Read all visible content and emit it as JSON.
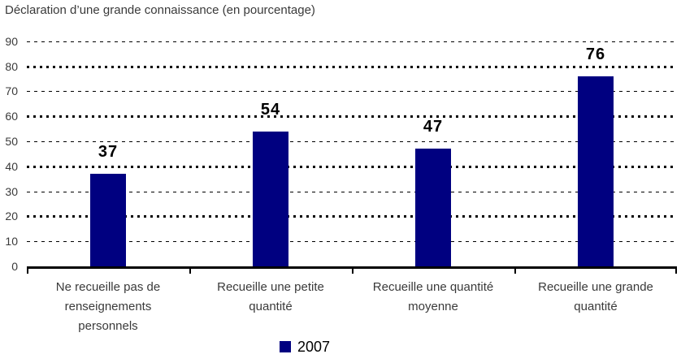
{
  "chart_data": {
    "type": "bar",
    "title": "Déclaration d’une grande connaissance (en pourcentage)",
    "categories": [
      "Ne recueille pas de\nrenseignements\npersonnels",
      "Recueille une petite\nquantité",
      "Recueille une quantité\nmoyenne",
      "Recueille une grande\nquantité"
    ],
    "series": [
      {
        "name": "2007",
        "values": [
          37,
          54,
          47,
          76
        ]
      }
    ],
    "xlabel": "",
    "ylabel": "",
    "ylim": [
      0,
      90
    ],
    "ytick_interval": 10,
    "yticks": [
      0,
      10,
      20,
      30,
      40,
      50,
      60,
      70,
      80,
      90
    ],
    "grid": "dotted-horizontal",
    "value_labels": "outside-end",
    "legend_position": "bottom-center"
  },
  "colors": {
    "bar": "#000080",
    "axis": "#000000",
    "gridline": "#000000",
    "label_text": "#3a3a3a",
    "value_text": "#000000"
  }
}
